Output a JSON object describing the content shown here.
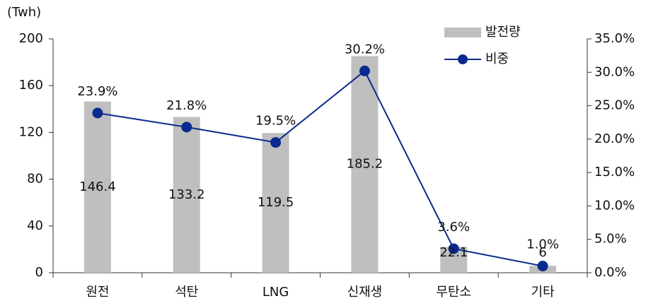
{
  "chart_data": {
    "type": "bar_line",
    "y_label": "(Twh)",
    "categories": [
      "원전",
      "석탄",
      "LNG",
      "신재생",
      "무탄소",
      "기타"
    ],
    "series": [
      {
        "name": "발전량",
        "type": "bar",
        "color": "#bfbfbf",
        "values": [
          146.4,
          133.2,
          119.5,
          185.2,
          22.1,
          6
        ]
      },
      {
        "name": "비중",
        "type": "line",
        "axis": "y2",
        "color": "#0b2a8f",
        "values": [
          23.9,
          21.8,
          19.5,
          30.2,
          3.6,
          1.0
        ],
        "value_labels": [
          "23.9%",
          "21.8%",
          "19.5%",
          "30.2%",
          "3.6%",
          "1.0%"
        ]
      }
    ],
    "ylim": [
      0,
      200
    ],
    "yticks": [
      0,
      40,
      80,
      120,
      160,
      200
    ],
    "y2lim": [
      0,
      35
    ],
    "y2ticks": [
      {
        "value": 0,
        "label": "0.0%"
      },
      {
        "value": 5,
        "label": "5.0%"
      },
      {
        "value": 10,
        "label": "10.0%"
      },
      {
        "value": 15,
        "label": "15.0%"
      },
      {
        "value": 20,
        "label": "20.0%"
      },
      {
        "value": 25,
        "label": "25.0%"
      },
      {
        "value": 30,
        "label": "30.0%"
      },
      {
        "value": 35,
        "label": "35.0%"
      }
    ],
    "legend": "top-right"
  }
}
